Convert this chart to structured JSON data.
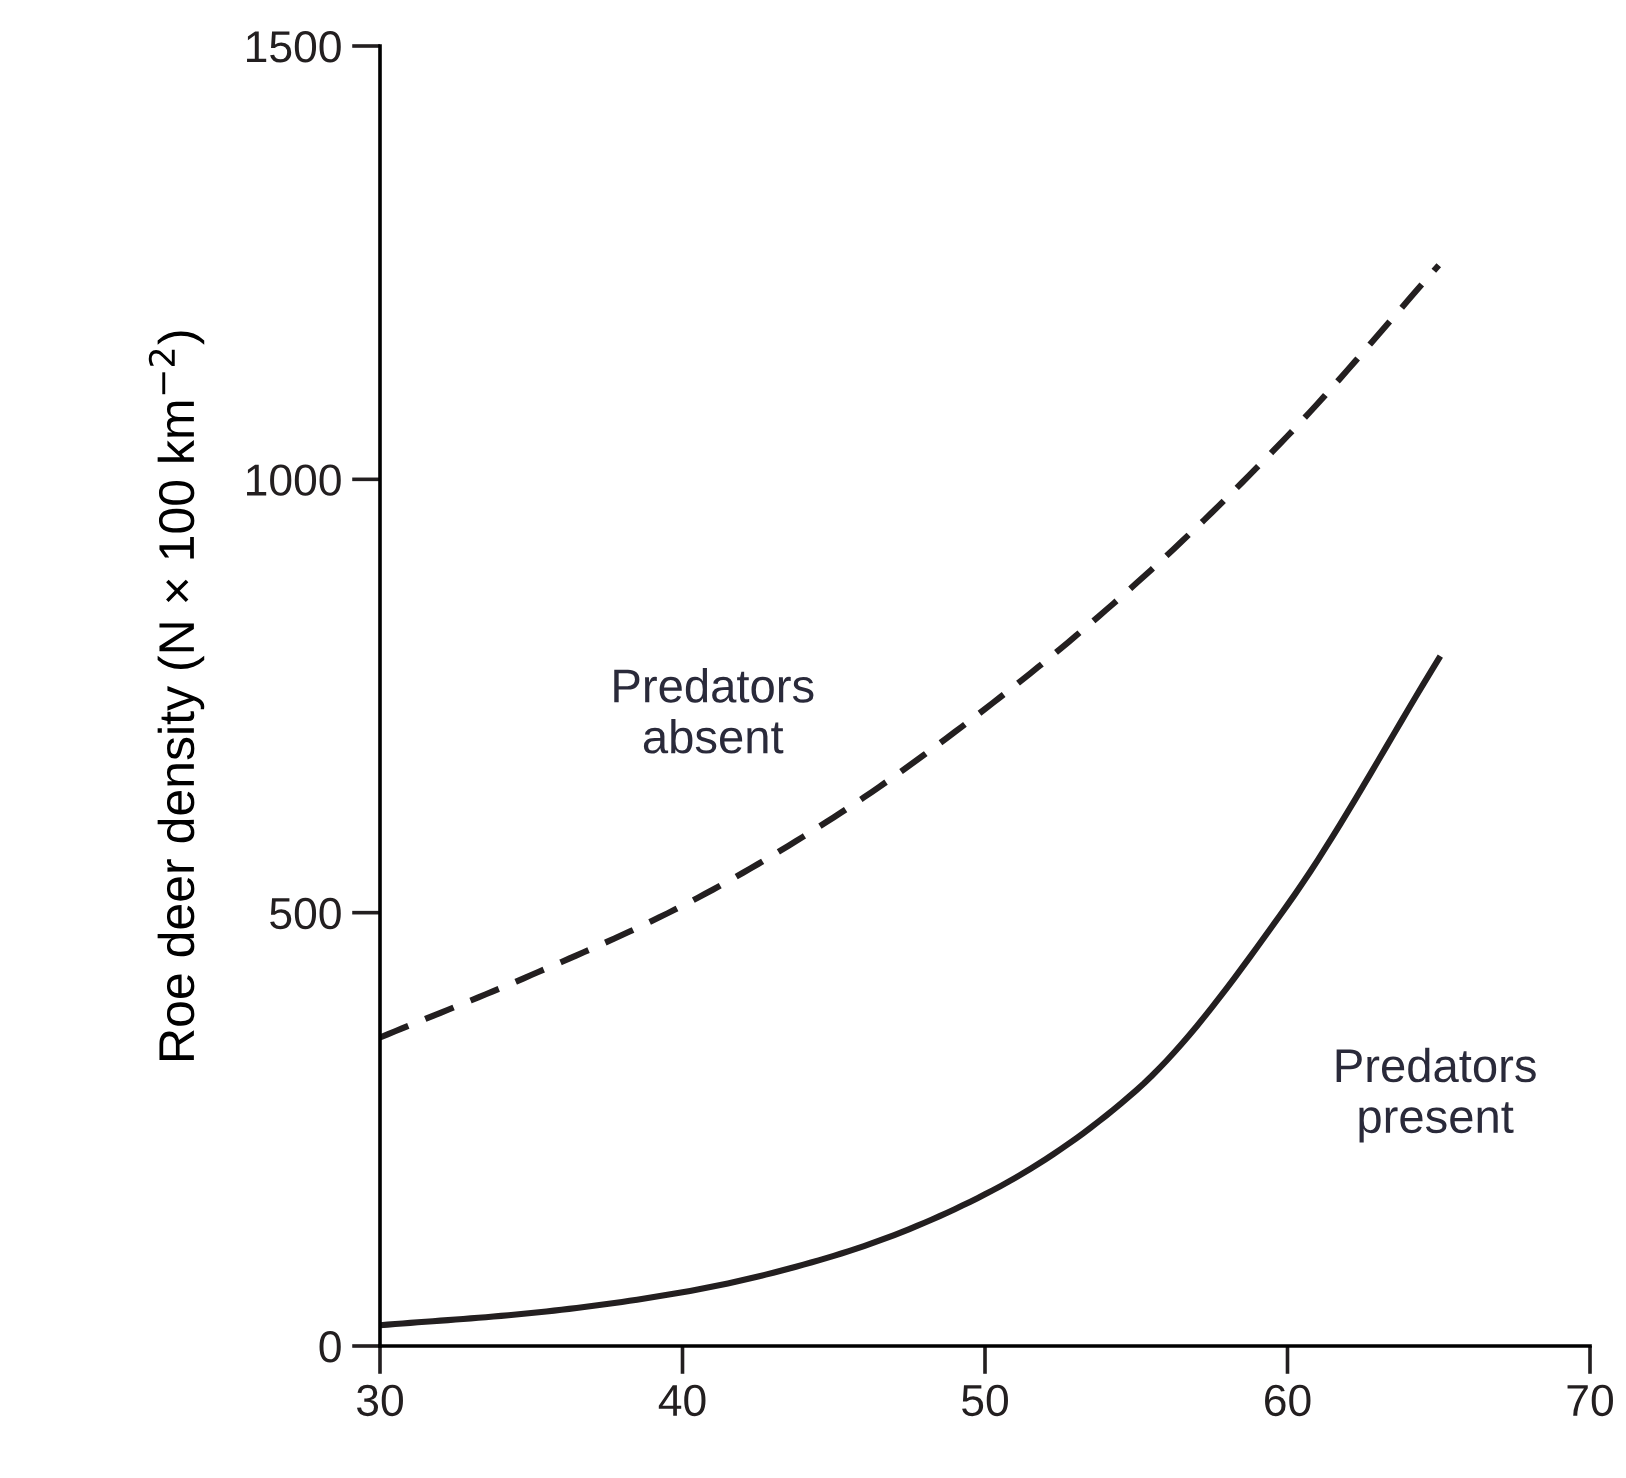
{
  "chart_data": {
    "type": "line",
    "ylabel": "Roe deer density (N × 100 km$^{−2}$)",
    "x": [
      30,
      35,
      40,
      45,
      50,
      55,
      60,
      65
    ],
    "series": [
      {
        "color": "#231f20",
        "line_style": "dashed",
        "values": [
          356,
          428,
          508,
          610,
          735,
          880,
          1050,
          1247
        ]
      },
      {
        "color": "#231f20",
        "line_style": "solid",
        "values": [
          24,
          38,
          62,
          104,
          175,
          295,
          509,
          793
        ]
      }
    ],
    "annotations": [
      "Predators\nabsent",
      "Predators\npresent"
    ],
    "xlim": [
      30,
      70
    ],
    "xticks": [
      30,
      40,
      50,
      60,
      70
    ],
    "ylim": [
      0,
      1500
    ],
    "yticks": [
      0,
      500,
      1000,
      1500
    ],
    "grid": false,
    "legend": false
  }
}
